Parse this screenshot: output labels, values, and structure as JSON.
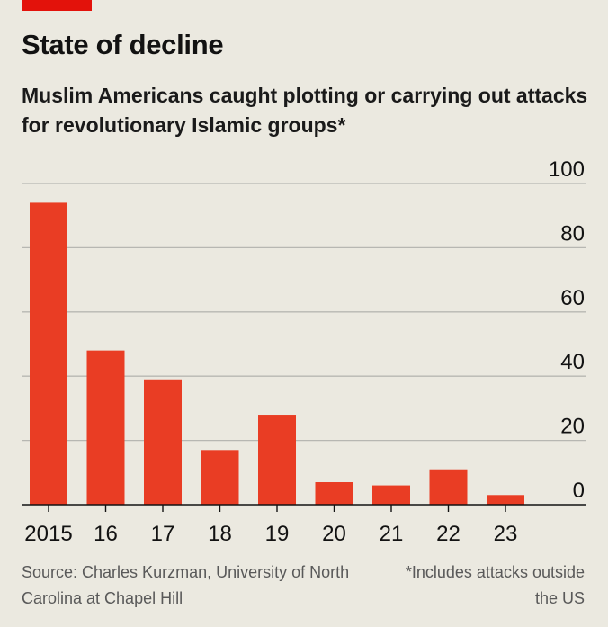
{
  "header": {
    "title": "State of decline",
    "subtitle": "Muslim Americans caught plotting or carrying out attacks for revolutionary Islamic groups*"
  },
  "footer": {
    "source": "Source: Charles Kurzman, University of North Carolina at Chapel Hill",
    "footnote": "*Includes attacks outside the US"
  },
  "colors": {
    "accent": "#e3120b",
    "bar": "#e93d24",
    "grid": "#b7b7b2",
    "axis": "#121212",
    "background": "#ebe9e0"
  },
  "chart_data": {
    "type": "bar",
    "categories": [
      "2015",
      "16",
      "17",
      "18",
      "19",
      "20",
      "21",
      "22",
      "23"
    ],
    "values": [
      94,
      48,
      39,
      17,
      28,
      7,
      6,
      11,
      3
    ],
    "ylim": [
      0,
      100
    ],
    "yticks": [
      0,
      20,
      40,
      60,
      80,
      100
    ],
    "grid": true,
    "y_axis_side": "right"
  }
}
